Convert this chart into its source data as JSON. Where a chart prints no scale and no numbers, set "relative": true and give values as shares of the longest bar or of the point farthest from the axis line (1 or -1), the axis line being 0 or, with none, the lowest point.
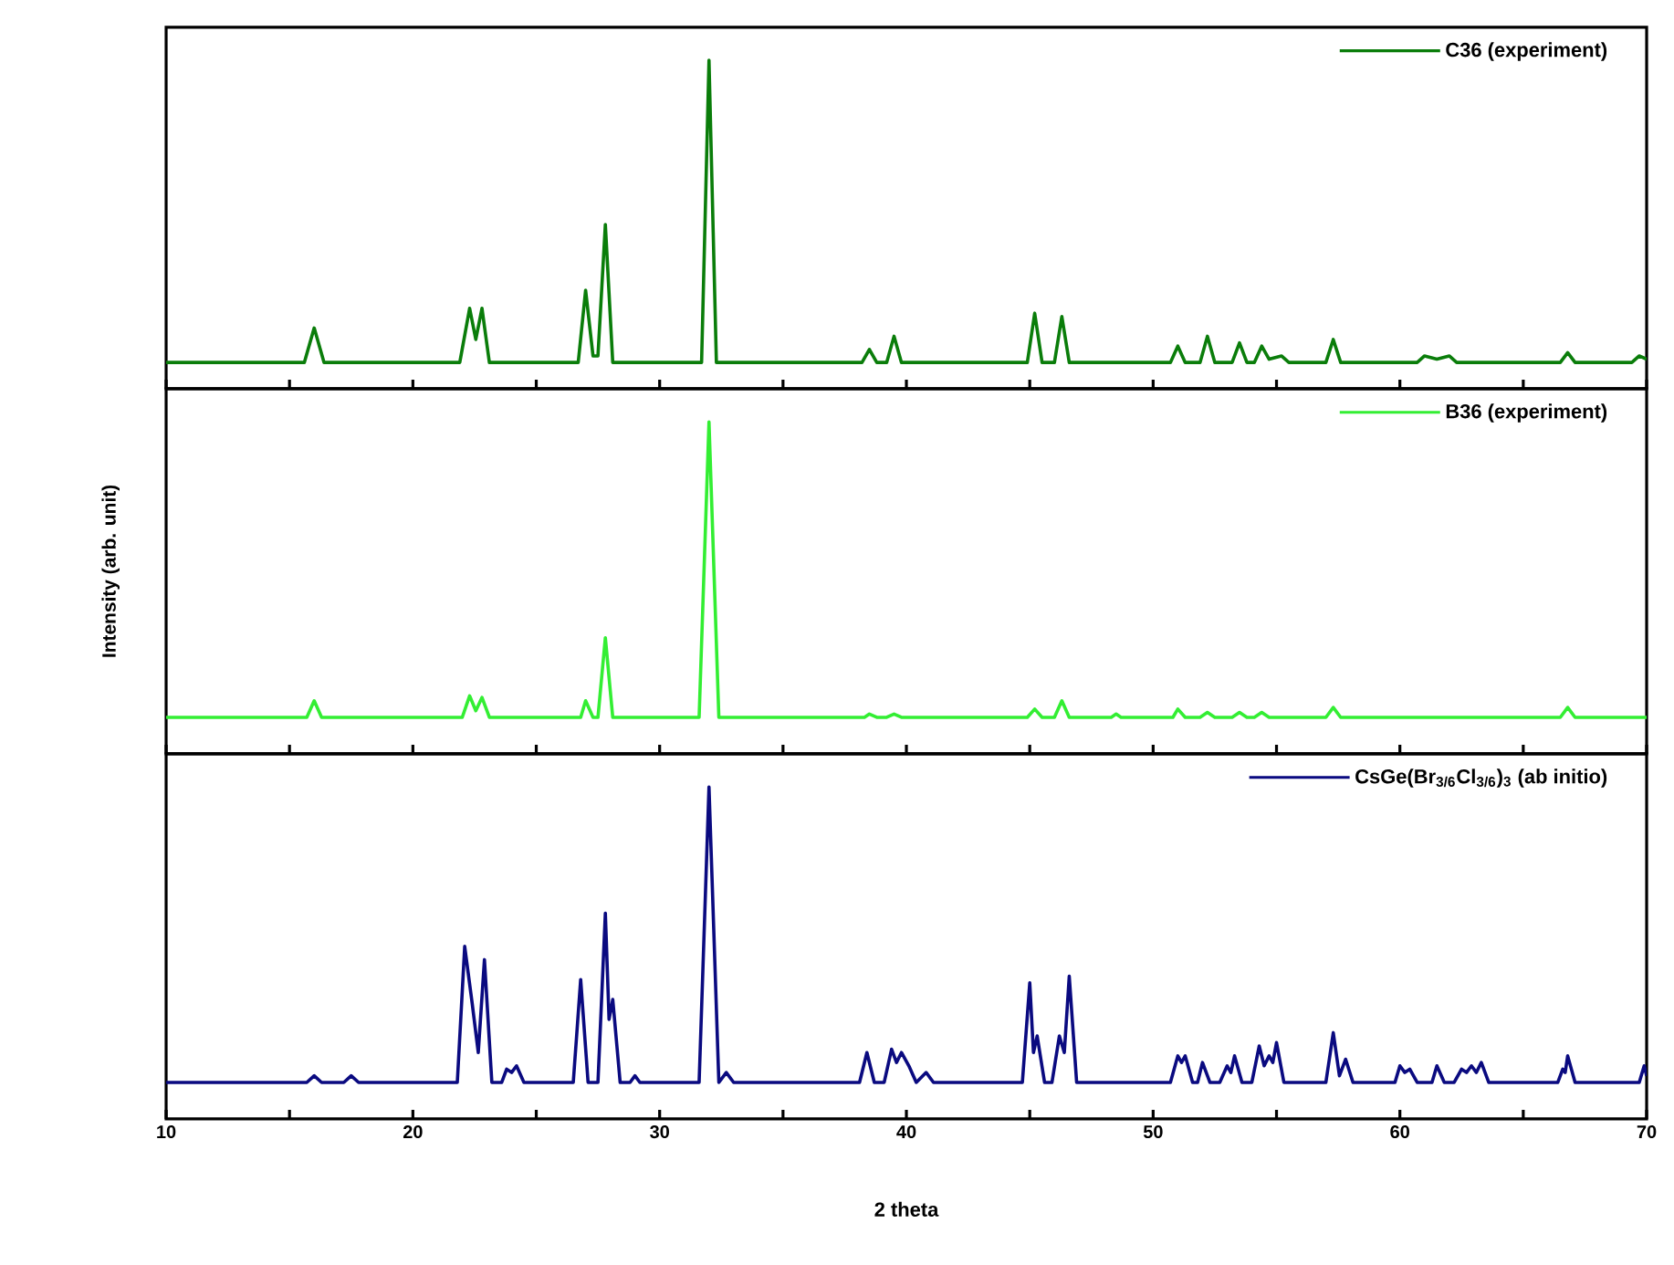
{
  "chart_data": [
    {
      "type": "line",
      "relative": true,
      "xlim": [
        10,
        70
      ],
      "xticks": [
        10,
        {
          "value": 15,
          "label": null
        },
        20,
        {
          "value": 25,
          "label": null
        },
        30,
        {
          "value": 35,
          "label": null
        },
        40,
        {
          "value": 45,
          "label": null
        },
        50,
        {
          "value": 55,
          "label": null
        },
        60,
        {
          "value": 65,
          "label": null
        },
        70
      ],
      "tick_labels": false,
      "legend": "top right",
      "x": [
        10,
        15.6,
        16,
        16.4,
        21.9,
        22.3,
        22.55,
        22.8,
        23.1,
        26.7,
        27,
        27.3,
        27.5,
        27.8,
        28.1,
        31.7,
        32,
        32.3,
        38.2,
        38.5,
        38.8,
        39.2,
        39.5,
        39.8,
        44.9,
        45.2,
        45.5,
        46.0,
        46.3,
        46.6,
        50.7,
        51,
        51.3,
        51.9,
        52.2,
        52.5,
        53.2,
        53.5,
        53.8,
        54.1,
        54.4,
        54.7,
        55.2,
        55.5,
        57.0,
        57.3,
        57.6,
        60.7,
        61,
        61.5,
        62,
        62.3,
        66.5,
        66.8,
        67.1,
        69.4,
        69.7,
        70
      ],
      "series": [
        {
          "name": "C36 (experiment)",
          "color": "#0a7d0a",
          "values": [
            0.08,
            0.08,
            0.185,
            0.08,
            0.08,
            0.245,
            0.15,
            0.245,
            0.08,
            0.08,
            0.3,
            0.1,
            0.1,
            0.5,
            0.08,
            0.08,
            1.0,
            0.08,
            0.08,
            0.12,
            0.08,
            0.08,
            0.16,
            0.08,
            0.08,
            0.23,
            0.08,
            0.08,
            0.22,
            0.08,
            0.08,
            0.13,
            0.08,
            0.08,
            0.16,
            0.08,
            0.08,
            0.14,
            0.08,
            0.08,
            0.13,
            0.09,
            0.1,
            0.08,
            0.08,
            0.15,
            0.08,
            0.08,
            0.1,
            0.09,
            0.1,
            0.08,
            0.08,
            0.11,
            0.08,
            0.08,
            0.1,
            0.09
          ]
        }
      ]
    },
    {
      "type": "line",
      "relative": true,
      "xlim": [
        10,
        70
      ],
      "xticks": [
        10,
        {
          "value": 15,
          "label": null
        },
        20,
        {
          "value": 25,
          "label": null
        },
        30,
        {
          "value": 35,
          "label": null
        },
        40,
        {
          "value": 45,
          "label": null
        },
        50,
        {
          "value": 55,
          "label": null
        },
        60,
        {
          "value": 65,
          "label": null
        },
        70
      ],
      "tick_labels": false,
      "legend": "top right",
      "ylabel": "Intensity (arb. unit)",
      "x": [
        10,
        15.7,
        16,
        16.3,
        22.0,
        22.3,
        22.55,
        22.8,
        23.1,
        26.8,
        27,
        27.3,
        27.5,
        27.8,
        28.1,
        31.6,
        32,
        32.4,
        38.3,
        38.5,
        38.8,
        39.2,
        39.5,
        39.8,
        44.9,
        45.2,
        45.5,
        46.0,
        46.3,
        46.6,
        48.3,
        48.5,
        48.7,
        50.8,
        51,
        51.3,
        51.9,
        52.2,
        52.5,
        53.2,
        53.5,
        53.8,
        54.1,
        54.4,
        54.7,
        57.0,
        57.3,
        57.6,
        66.5,
        66.8,
        67.1,
        70
      ],
      "series": [
        {
          "name": "B36 (experiment)",
          "color": "#33ee33",
          "values": [
            0.11,
            0.11,
            0.16,
            0.11,
            0.11,
            0.175,
            0.13,
            0.17,
            0.11,
            0.11,
            0.16,
            0.11,
            0.11,
            0.35,
            0.11,
            0.11,
            1.0,
            0.11,
            0.11,
            0.12,
            0.11,
            0.11,
            0.12,
            0.11,
            0.11,
            0.135,
            0.11,
            0.11,
            0.16,
            0.11,
            0.11,
            0.12,
            0.11,
            0.11,
            0.135,
            0.11,
            0.11,
            0.125,
            0.11,
            0.11,
            0.125,
            0.11,
            0.11,
            0.125,
            0.11,
            0.11,
            0.14,
            0.11,
            0.11,
            0.14,
            0.11,
            0.11
          ]
        }
      ]
    },
    {
      "type": "line",
      "relative": true,
      "xlim": [
        10,
        70
      ],
      "xticks": [
        10,
        {
          "value": 15,
          "label": null
        },
        20,
        {
          "value": 25,
          "label": null
        },
        30,
        {
          "value": 35,
          "label": null
        },
        40,
        {
          "value": 45,
          "label": null
        },
        50,
        {
          "value": 55,
          "label": null
        },
        60,
        {
          "value": 65,
          "label": null
        },
        70
      ],
      "tick_labels": "x",
      "legend": "top right",
      "xlabel": "2 theta",
      "x": [
        10,
        15.7,
        16,
        16.3,
        17.2,
        17.5,
        17.8,
        21.8,
        22.1,
        22.4,
        22.65,
        22.9,
        23.2,
        23.6,
        23.8,
        24.0,
        24.2,
        24.5,
        26.5,
        26.8,
        27.1,
        27.5,
        27.8,
        27.95,
        28.1,
        28.4,
        28.8,
        29,
        29.2,
        31.6,
        32,
        32.4,
        32.7,
        33.0,
        38.1,
        38.4,
        38.7,
        39.1,
        39.4,
        39.6,
        39.8,
        40.1,
        40.4,
        40.8,
        41.1,
        44.7,
        45,
        45.15,
        45.3,
        45.6,
        45.9,
        46.2,
        46.4,
        46.6,
        46.9,
        50.7,
        51,
        51.15,
        51.3,
        51.6,
        51.8,
        52,
        52.3,
        52.7,
        53,
        53.15,
        53.3,
        53.6,
        54.0,
        54.3,
        54.5,
        54.7,
        54.85,
        55,
        55.3,
        57.0,
        57.3,
        57.55,
        57.8,
        58.1,
        59.8,
        60,
        60.2,
        60.4,
        60.7,
        61.3,
        61.5,
        61.8,
        62.2,
        62.5,
        62.7,
        62.9,
        63.1,
        63.3,
        63.6,
        66.4,
        66.6,
        66.7,
        66.8,
        67.1,
        69.7,
        69.9,
        70
      ],
      "series": [
        {
          "name": "CsGe(Br$_{3/6}$Cl$_{3/6}$)$_{3}$ (ab initio)",
          "color": "#0a0a80",
          "values": [
            0.11,
            0.11,
            0.13,
            0.11,
            0.11,
            0.13,
            0.11,
            0.11,
            0.52,
            0.35,
            0.2,
            0.48,
            0.11,
            0.11,
            0.15,
            0.14,
            0.16,
            0.11,
            0.11,
            0.42,
            0.11,
            0.11,
            0.62,
            0.3,
            0.36,
            0.11,
            0.11,
            0.13,
            0.11,
            0.11,
            1.0,
            0.11,
            0.14,
            0.11,
            0.11,
            0.2,
            0.11,
            0.11,
            0.21,
            0.17,
            0.2,
            0.16,
            0.11,
            0.14,
            0.11,
            0.11,
            0.41,
            0.2,
            0.25,
            0.11,
            0.11,
            0.25,
            0.2,
            0.43,
            0.11,
            0.11,
            0.19,
            0.17,
            0.19,
            0.11,
            0.11,
            0.17,
            0.11,
            0.11,
            0.16,
            0.14,
            0.19,
            0.11,
            0.11,
            0.22,
            0.16,
            0.19,
            0.17,
            0.23,
            0.11,
            0.11,
            0.26,
            0.13,
            0.18,
            0.11,
            0.11,
            0.16,
            0.14,
            0.15,
            0.11,
            0.11,
            0.16,
            0.11,
            0.11,
            0.15,
            0.14,
            0.16,
            0.14,
            0.17,
            0.11,
            0.11,
            0.15,
            0.14,
            0.19,
            0.11,
            0.11,
            0.16,
            0.13
          ]
        }
      ]
    }
  ]
}
